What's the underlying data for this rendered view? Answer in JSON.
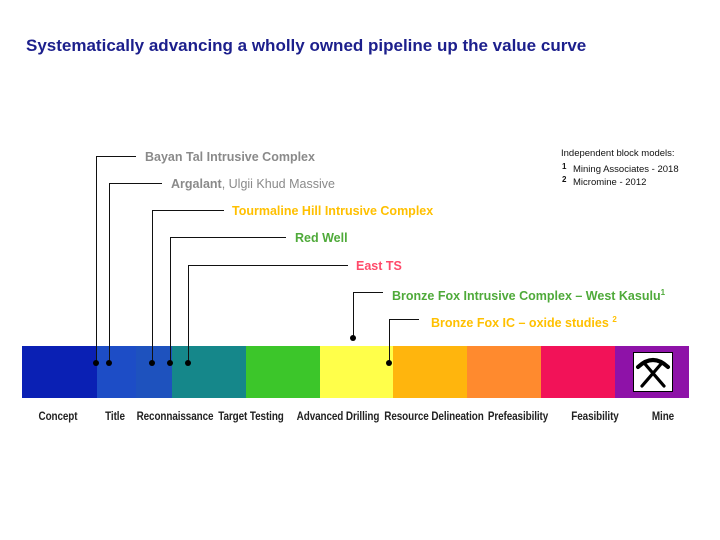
{
  "title": "Systematically advancing a wholly owned pipeline up the value curve",
  "legend": {
    "heading": "Independent block models:",
    "items": [
      {
        "num": "1",
        "text": "Mining Associates - 2018"
      },
      {
        "num": "2",
        "text": "Micromine - 2012"
      }
    ]
  },
  "stages": [
    {
      "label": "Concept",
      "color": "#0a20b4"
    },
    {
      "label": "Title",
      "color": "#1d4dc6"
    },
    {
      "label": "Reconnaissance",
      "color": "#1e52be"
    },
    {
      "label": "Target Testing",
      "color": "#15878a"
    },
    {
      "label": "Advanced Drilling",
      "color": "#3cc62a"
    },
    {
      "label": "Resource Delineation",
      "color": "#ffff4a"
    },
    {
      "label": "Prefeasibility",
      "color": "#ffb50d"
    },
    {
      "label": "Feasibility",
      "color": "#ff8a2e"
    },
    {
      "label": "Mine",
      "color": "#f21258"
    },
    {
      "label": "",
      "color": "#8e12a8"
    }
  ],
  "projects": [
    {
      "name": "Bayan Tal Intrusive Complex",
      "suffix": "",
      "sup": "",
      "color": "#8a8a8a"
    },
    {
      "name": "Argalant",
      "suffix": ", Ulgii Khud Massive",
      "sup": "",
      "color": "#8a8a8a"
    },
    {
      "name": "Tourmaline Hill Intrusive Complex",
      "suffix": "",
      "sup": "",
      "color": "#ffc000"
    },
    {
      "name": "Red Well",
      "suffix": "",
      "sup": "",
      "color": "#4faa3a"
    },
    {
      "name": "East TS",
      "suffix": "",
      "sup": "",
      "color": "#ff4a6a"
    },
    {
      "name": "Bronze Fox Intrusive Complex – West Kasulu",
      "suffix": "",
      "sup": "1",
      "color": "#4faa3a"
    },
    {
      "name": "Bronze Fox IC – oxide studies",
      "suffix": "",
      "sup": "2",
      "color": "#ffc000"
    }
  ],
  "mine_icon": "crossed-pickaxes-icon"
}
